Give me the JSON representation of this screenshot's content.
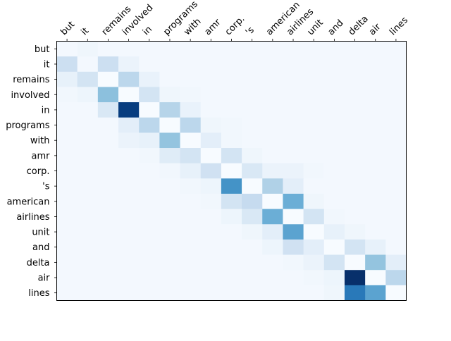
{
  "chart_data": {
    "type": "heatmap",
    "title": "",
    "xlabel": "",
    "ylabel": "",
    "x_labels": [
      "but",
      "it",
      "remains",
      "involved",
      "in",
      "programs",
      "with",
      "amr",
      "corp.",
      "'s",
      "american",
      "airlines",
      "unit",
      "and",
      "delta",
      "air",
      "lines"
    ],
    "y_labels": [
      "but",
      "it",
      "remains",
      "involved",
      "in",
      "programs",
      "with",
      "amr",
      "corp.",
      "'s",
      "american",
      "airlines",
      "unit",
      "and",
      "delta",
      "air",
      "lines"
    ],
    "colormap": "Blues",
    "value_range": [
      0,
      1
    ],
    "x_tick_position": "top",
    "grid": false,
    "values": [
      [
        0.02,
        0.04,
        0.02,
        0.02,
        0.02,
        0.02,
        0.02,
        0.02,
        0.02,
        0.02,
        0.02,
        0.02,
        0.02,
        0.02,
        0.02,
        0.02,
        0.02
      ],
      [
        0.22,
        0.02,
        0.22,
        0.06,
        0.02,
        0.02,
        0.02,
        0.02,
        0.02,
        0.02,
        0.02,
        0.02,
        0.02,
        0.02,
        0.02,
        0.02,
        0.02
      ],
      [
        0.08,
        0.18,
        0.0,
        0.28,
        0.07,
        0.02,
        0.02,
        0.02,
        0.02,
        0.02,
        0.02,
        0.02,
        0.02,
        0.02,
        0.02,
        0.02,
        0.02
      ],
      [
        0.03,
        0.05,
        0.42,
        0.0,
        0.18,
        0.04,
        0.03,
        0.02,
        0.02,
        0.02,
        0.02,
        0.02,
        0.02,
        0.02,
        0.02,
        0.02,
        0.02
      ],
      [
        0.02,
        0.02,
        0.15,
        0.95,
        0.0,
        0.3,
        0.07,
        0.02,
        0.02,
        0.02,
        0.02,
        0.02,
        0.02,
        0.02,
        0.02,
        0.02,
        0.02
      ],
      [
        0.02,
        0.02,
        0.02,
        0.1,
        0.28,
        0.0,
        0.28,
        0.04,
        0.03,
        0.02,
        0.02,
        0.02,
        0.02,
        0.02,
        0.02,
        0.02,
        0.02
      ],
      [
        0.02,
        0.02,
        0.02,
        0.06,
        0.08,
        0.4,
        0.0,
        0.1,
        0.03,
        0.02,
        0.02,
        0.02,
        0.02,
        0.02,
        0.02,
        0.02,
        0.02
      ],
      [
        0.02,
        0.02,
        0.02,
        0.02,
        0.03,
        0.12,
        0.18,
        0.0,
        0.18,
        0.04,
        0.02,
        0.02,
        0.02,
        0.02,
        0.02,
        0.02,
        0.02
      ],
      [
        0.02,
        0.02,
        0.02,
        0.02,
        0.02,
        0.03,
        0.08,
        0.2,
        0.0,
        0.15,
        0.06,
        0.06,
        0.03,
        0.02,
        0.02,
        0.02,
        0.02
      ],
      [
        0.02,
        0.02,
        0.02,
        0.02,
        0.02,
        0.02,
        0.03,
        0.05,
        0.62,
        0.0,
        0.32,
        0.1,
        0.02,
        0.02,
        0.02,
        0.02,
        0.02
      ],
      [
        0.02,
        0.02,
        0.02,
        0.02,
        0.02,
        0.02,
        0.02,
        0.03,
        0.18,
        0.25,
        0.0,
        0.5,
        0.04,
        0.02,
        0.02,
        0.02,
        0.02
      ],
      [
        0.02,
        0.02,
        0.02,
        0.02,
        0.02,
        0.02,
        0.02,
        0.02,
        0.05,
        0.15,
        0.5,
        0.0,
        0.18,
        0.03,
        0.02,
        0.02,
        0.02
      ],
      [
        0.02,
        0.02,
        0.02,
        0.02,
        0.02,
        0.02,
        0.02,
        0.02,
        0.02,
        0.04,
        0.1,
        0.55,
        0.0,
        0.08,
        0.04,
        0.02,
        0.02
      ],
      [
        0.02,
        0.02,
        0.02,
        0.02,
        0.02,
        0.02,
        0.02,
        0.02,
        0.02,
        0.02,
        0.05,
        0.2,
        0.1,
        0.0,
        0.18,
        0.08,
        0.02
      ],
      [
        0.02,
        0.02,
        0.02,
        0.02,
        0.02,
        0.02,
        0.02,
        0.02,
        0.02,
        0.02,
        0.02,
        0.03,
        0.06,
        0.18,
        0.0,
        0.4,
        0.1
      ],
      [
        0.02,
        0.02,
        0.02,
        0.02,
        0.02,
        0.02,
        0.02,
        0.02,
        0.02,
        0.02,
        0.02,
        0.02,
        0.03,
        0.05,
        1.0,
        0.0,
        0.28
      ],
      [
        0.02,
        0.02,
        0.02,
        0.02,
        0.02,
        0.02,
        0.02,
        0.02,
        0.02,
        0.02,
        0.02,
        0.02,
        0.02,
        0.04,
        0.72,
        0.55,
        0.0
      ]
    ]
  }
}
